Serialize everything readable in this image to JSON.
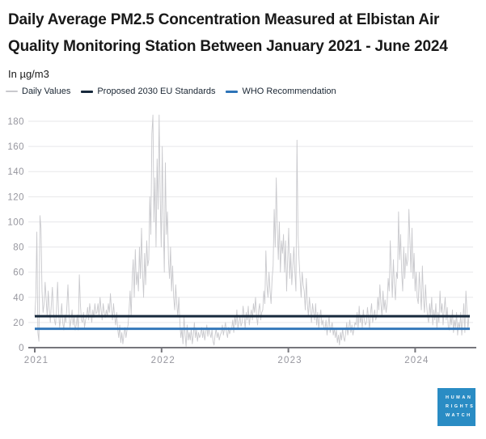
{
  "header": {
    "title": "Daily Average PM2.5 Concentration Measured at Elbistan Air Quality Monitoring Station Between January 2021 - June 2024",
    "subtitle": "In µg/m3"
  },
  "chart_data": {
    "type": "line",
    "x_range": "January 2021 - June 2024",
    "x_tick_labels": [
      "2021",
      "2022",
      "2023",
      "2024"
    ],
    "y_ticks": [
      0,
      20,
      40,
      60,
      80,
      100,
      120,
      140,
      160,
      180
    ],
    "ylim": [
      0,
      190
    ],
    "grid": "horizontal",
    "legend_position": "top",
    "colors": {
      "daily": "#c9c9cd",
      "eu": "#17293c",
      "who": "#2e74b8",
      "gridline": "#e7e7ea",
      "axis": "#76767c",
      "axis_label": "#96969e"
    },
    "series": [
      {
        "name": "Daily Values",
        "kind": "line",
        "color": "#c9c9cd",
        "values": [
          25,
          40,
          92,
          12,
          5,
          105,
          95,
          45,
          28,
          35,
          52,
          38,
          25,
          45,
          30,
          20,
          35,
          48,
          28,
          22,
          18,
          30,
          52,
          28,
          16,
          24,
          35,
          20,
          14,
          26,
          20,
          33,
          50,
          28,
          16,
          22,
          30,
          18,
          25,
          14,
          18,
          26,
          14,
          58,
          35,
          22,
          20,
          28,
          16,
          22,
          25,
          32,
          22,
          35,
          28,
          20,
          30,
          24,
          35,
          27,
          28,
          35,
          25,
          40,
          30,
          22,
          35,
          28,
          24,
          30,
          25,
          35,
          28,
          43,
          30,
          22,
          35,
          25,
          18,
          28,
          15,
          8,
          18,
          4,
          12,
          3,
          10,
          16,
          8,
          14,
          18,
          30,
          45,
          25,
          55,
          70,
          40,
          78,
          50,
          60,
          45,
          80,
          55,
          95,
          60,
          40,
          75,
          50,
          85,
          65,
          70,
          120,
          90,
          170,
          185,
          100,
          135,
          80,
          150,
          110,
          185,
          120,
          80,
          160,
          100,
          60,
          147,
          90,
          108,
          70,
          55,
          80,
          45,
          65,
          40,
          30,
          50,
          35,
          25,
          40,
          20,
          8,
          15,
          3,
          25,
          10,
          1,
          18,
          6,
          12,
          6,
          15,
          3,
          10,
          20,
          8,
          14,
          5,
          12,
          8,
          10,
          16,
          8,
          14,
          6,
          12,
          18,
          9,
          15,
          11,
          8,
          14,
          5,
          2,
          10,
          15,
          8,
          12,
          6,
          10,
          12,
          18,
          10,
          15,
          20,
          12,
          8,
          16,
          11,
          14,
          15,
          22,
          12,
          25,
          18,
          30,
          15,
          20,
          25,
          17,
          20,
          33,
          25,
          15,
          28,
          22,
          33,
          18,
          25,
          30,
          22,
          35,
          28,
          40,
          25,
          18,
          30,
          35,
          22,
          28,
          30,
          45,
          35,
          77,
          50,
          40,
          60,
          45,
          35,
          55,
          65,
          110,
          80,
          135,
          95,
          70,
          100,
          60,
          85,
          75,
          90,
          60,
          85,
          45,
          70,
          95,
          55,
          75,
          50,
          65,
          80,
          60,
          45,
          165,
          90,
          70,
          55,
          40,
          60,
          50,
          45,
          30,
          55,
          35,
          25,
          40,
          30,
          20,
          35,
          28,
          22,
          35,
          18,
          28,
          15,
          25,
          30,
          18,
          22,
          16,
          14,
          22,
          10,
          18,
          25,
          12,
          16,
          20,
          10,
          15,
          8,
          14,
          4,
          10,
          2,
          12,
          6,
          15,
          8,
          5,
          12,
          20,
          10,
          16,
          22,
          12,
          18,
          10,
          15,
          20,
          18,
          28,
          15,
          33,
          20,
          25,
          16,
          30,
          22,
          18,
          20,
          32,
          24,
          15,
          28,
          35,
          20,
          25,
          30,
          22,
          25,
          40,
          30,
          50,
          35,
          25,
          45,
          30,
          38,
          28,
          35,
          55,
          45,
          85,
          60,
          40,
          70,
          50,
          38,
          60,
          55,
          108,
          70,
          90,
          60,
          45,
          80,
          55,
          75,
          65,
          70,
          110,
          85,
          60,
          95,
          55,
          75,
          45,
          60,
          40,
          35,
          60,
          45,
          30,
          65,
          40,
          28,
          50,
          35,
          25,
          20,
          35,
          25,
          40,
          18,
          30,
          22,
          35,
          15,
          28,
          20,
          45,
          28,
          35,
          18,
          30,
          40,
          22,
          32,
          16,
          14,
          25,
          18,
          30,
          12,
          22,
          16,
          28,
          10,
          20,
          15,
          28,
          10,
          22,
          35,
          12,
          45,
          30,
          15,
          26
        ]
      },
      {
        "name": "Proposed 2030 EU Standards",
        "kind": "hline",
        "value": 25,
        "color": "#17293c"
      },
      {
        "name": "WHO Recommendation",
        "kind": "hline",
        "value": 15,
        "color": "#2e74b8"
      }
    ]
  },
  "logo": {
    "lines": [
      "HUMAN",
      "RIGHTS",
      "WATCH"
    ],
    "background": "#2a8cc4"
  }
}
